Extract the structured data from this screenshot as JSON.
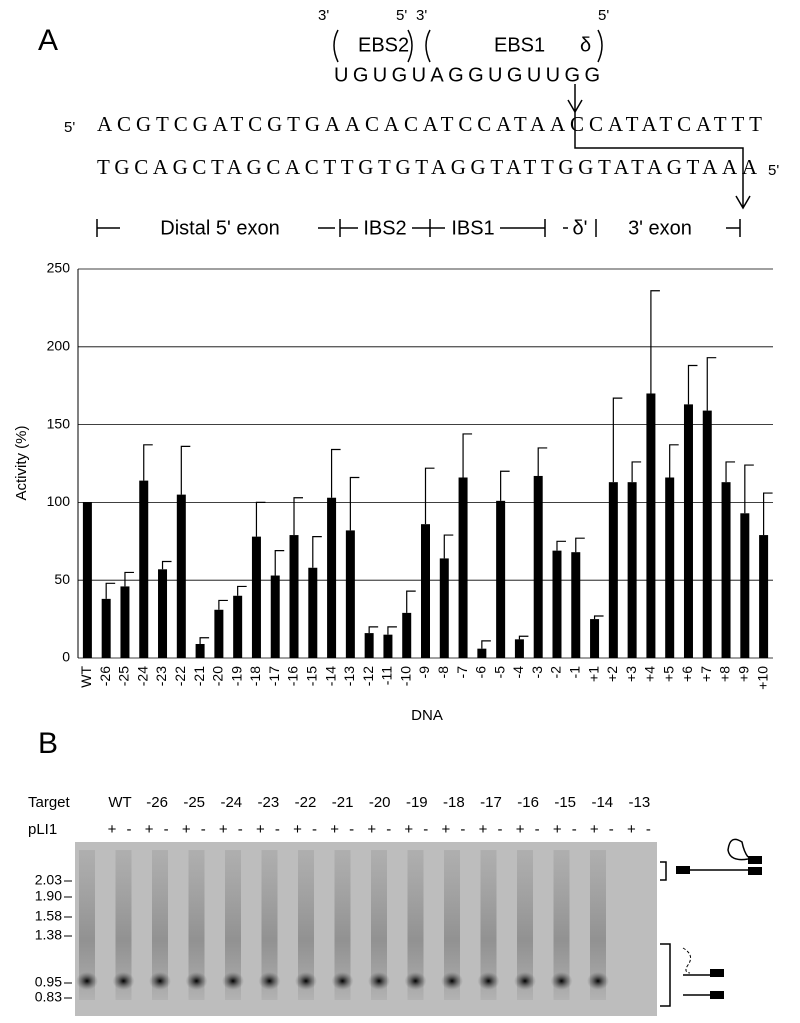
{
  "figure": {
    "panel_a_label": "A",
    "panel_b_label": "B"
  },
  "diagram": {
    "prime_3": "3'",
    "prime_5": "5'",
    "ebs2": "EBS2",
    "ebs1": "EBS1",
    "delta": "δ",
    "rna": "UGUGUAGGUGUUGG",
    "top_strand": "ACGTCGATCGTGAACACATCCATAACCATATCATTT",
    "bottom_strand": "TGCAGCTAGCACTTGTGTAGGTATTGGTATAGTAAA",
    "regions": [
      "Distal 5' exon",
      "IBS2",
      "IBS1",
      "δ'",
      "3' exon"
    ]
  },
  "chart_data": {
    "type": "bar",
    "y_label": "Activity (%)",
    "x_label": "DNA",
    "categories": [
      "WT",
      "-26",
      "-25",
      "-24",
      "-23",
      "-22",
      "-21",
      "-20",
      "-19",
      "-18",
      "-17",
      "-16",
      "-15",
      "-14",
      "-13",
      "-12",
      "-11",
      "-10",
      "-9",
      "-8",
      "-7",
      "-6",
      "-5",
      "-4",
      "-3",
      "-2",
      "-1",
      "+1",
      "+2",
      "+3",
      "+4",
      "+5",
      "+6",
      "+7",
      "+8",
      "+9",
      "+10"
    ],
    "values": [
      100,
      38,
      46,
      114,
      57,
      105,
      9,
      31,
      40,
      78,
      53,
      79,
      58,
      103,
      82,
      16,
      15,
      29,
      86,
      64,
      116,
      6,
      101,
      12,
      117,
      69,
      68,
      25,
      113,
      113,
      170,
      116,
      163,
      159,
      113,
      93,
      79
    ],
    "errors": [
      null,
      10,
      9,
      23,
      5,
      31,
      4,
      6,
      6,
      22,
      16,
      24,
      20,
      31,
      34,
      4,
      5,
      14,
      36,
      15,
      28,
      5,
      19,
      2,
      18,
      6,
      9,
      2,
      54,
      13,
      66,
      21,
      25,
      34,
      13,
      31,
      27
    ],
    "color": "#000000",
    "ylim": [
      0,
      250
    ],
    "yticks": [
      0,
      50,
      100,
      150,
      200,
      250
    ],
    "grid": true
  },
  "gel": {
    "target_label": "Target",
    "plasmid_label": "pLI1",
    "lanes": [
      "WT",
      "-26",
      "-25",
      "-24",
      "-23",
      "-22",
      "-21",
      "-20",
      "-19",
      "-18",
      "-17",
      "-16",
      "-15",
      "-14",
      "-13"
    ],
    "signs": [
      "+",
      "-"
    ],
    "size_markers": [
      "2.03",
      "1.90",
      "1.58",
      "1.38",
      "0.95",
      "0.83"
    ]
  }
}
